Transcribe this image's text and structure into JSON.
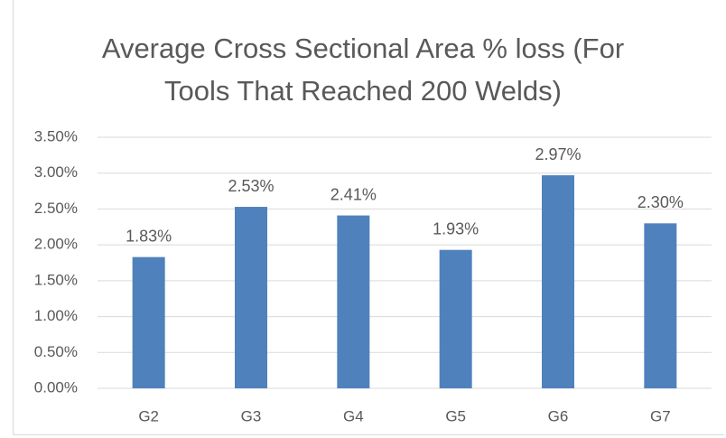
{
  "chart_data": {
    "type": "bar",
    "title": "Average Cross Sectional Area % loss (For Tools That Reached 200 Welds)",
    "categories": [
      "G2",
      "G3",
      "G4",
      "G5",
      "G6",
      "G7"
    ],
    "values": [
      1.83,
      2.53,
      2.41,
      1.93,
      2.97,
      2.3
    ],
    "value_labels": [
      "1.83%",
      "2.53%",
      "2.41%",
      "1.93%",
      "2.97%",
      "2.30%"
    ],
    "color": "#4f81bd",
    "ylim": [
      0,
      3.5
    ],
    "yticks": [
      {
        "value": 0,
        "label": "0.00%"
      },
      {
        "value": 0.5,
        "label": "0.50%"
      },
      {
        "value": 1,
        "label": "1.00%"
      },
      {
        "value": 1.5,
        "label": "1.50%"
      },
      {
        "value": 2,
        "label": "2.00%"
      },
      {
        "value": 2.5,
        "label": "2.50%"
      },
      {
        "value": 3,
        "label": "3.00%"
      },
      {
        "value": 3.5,
        "label": "3.50%"
      }
    ],
    "grid": true
  }
}
